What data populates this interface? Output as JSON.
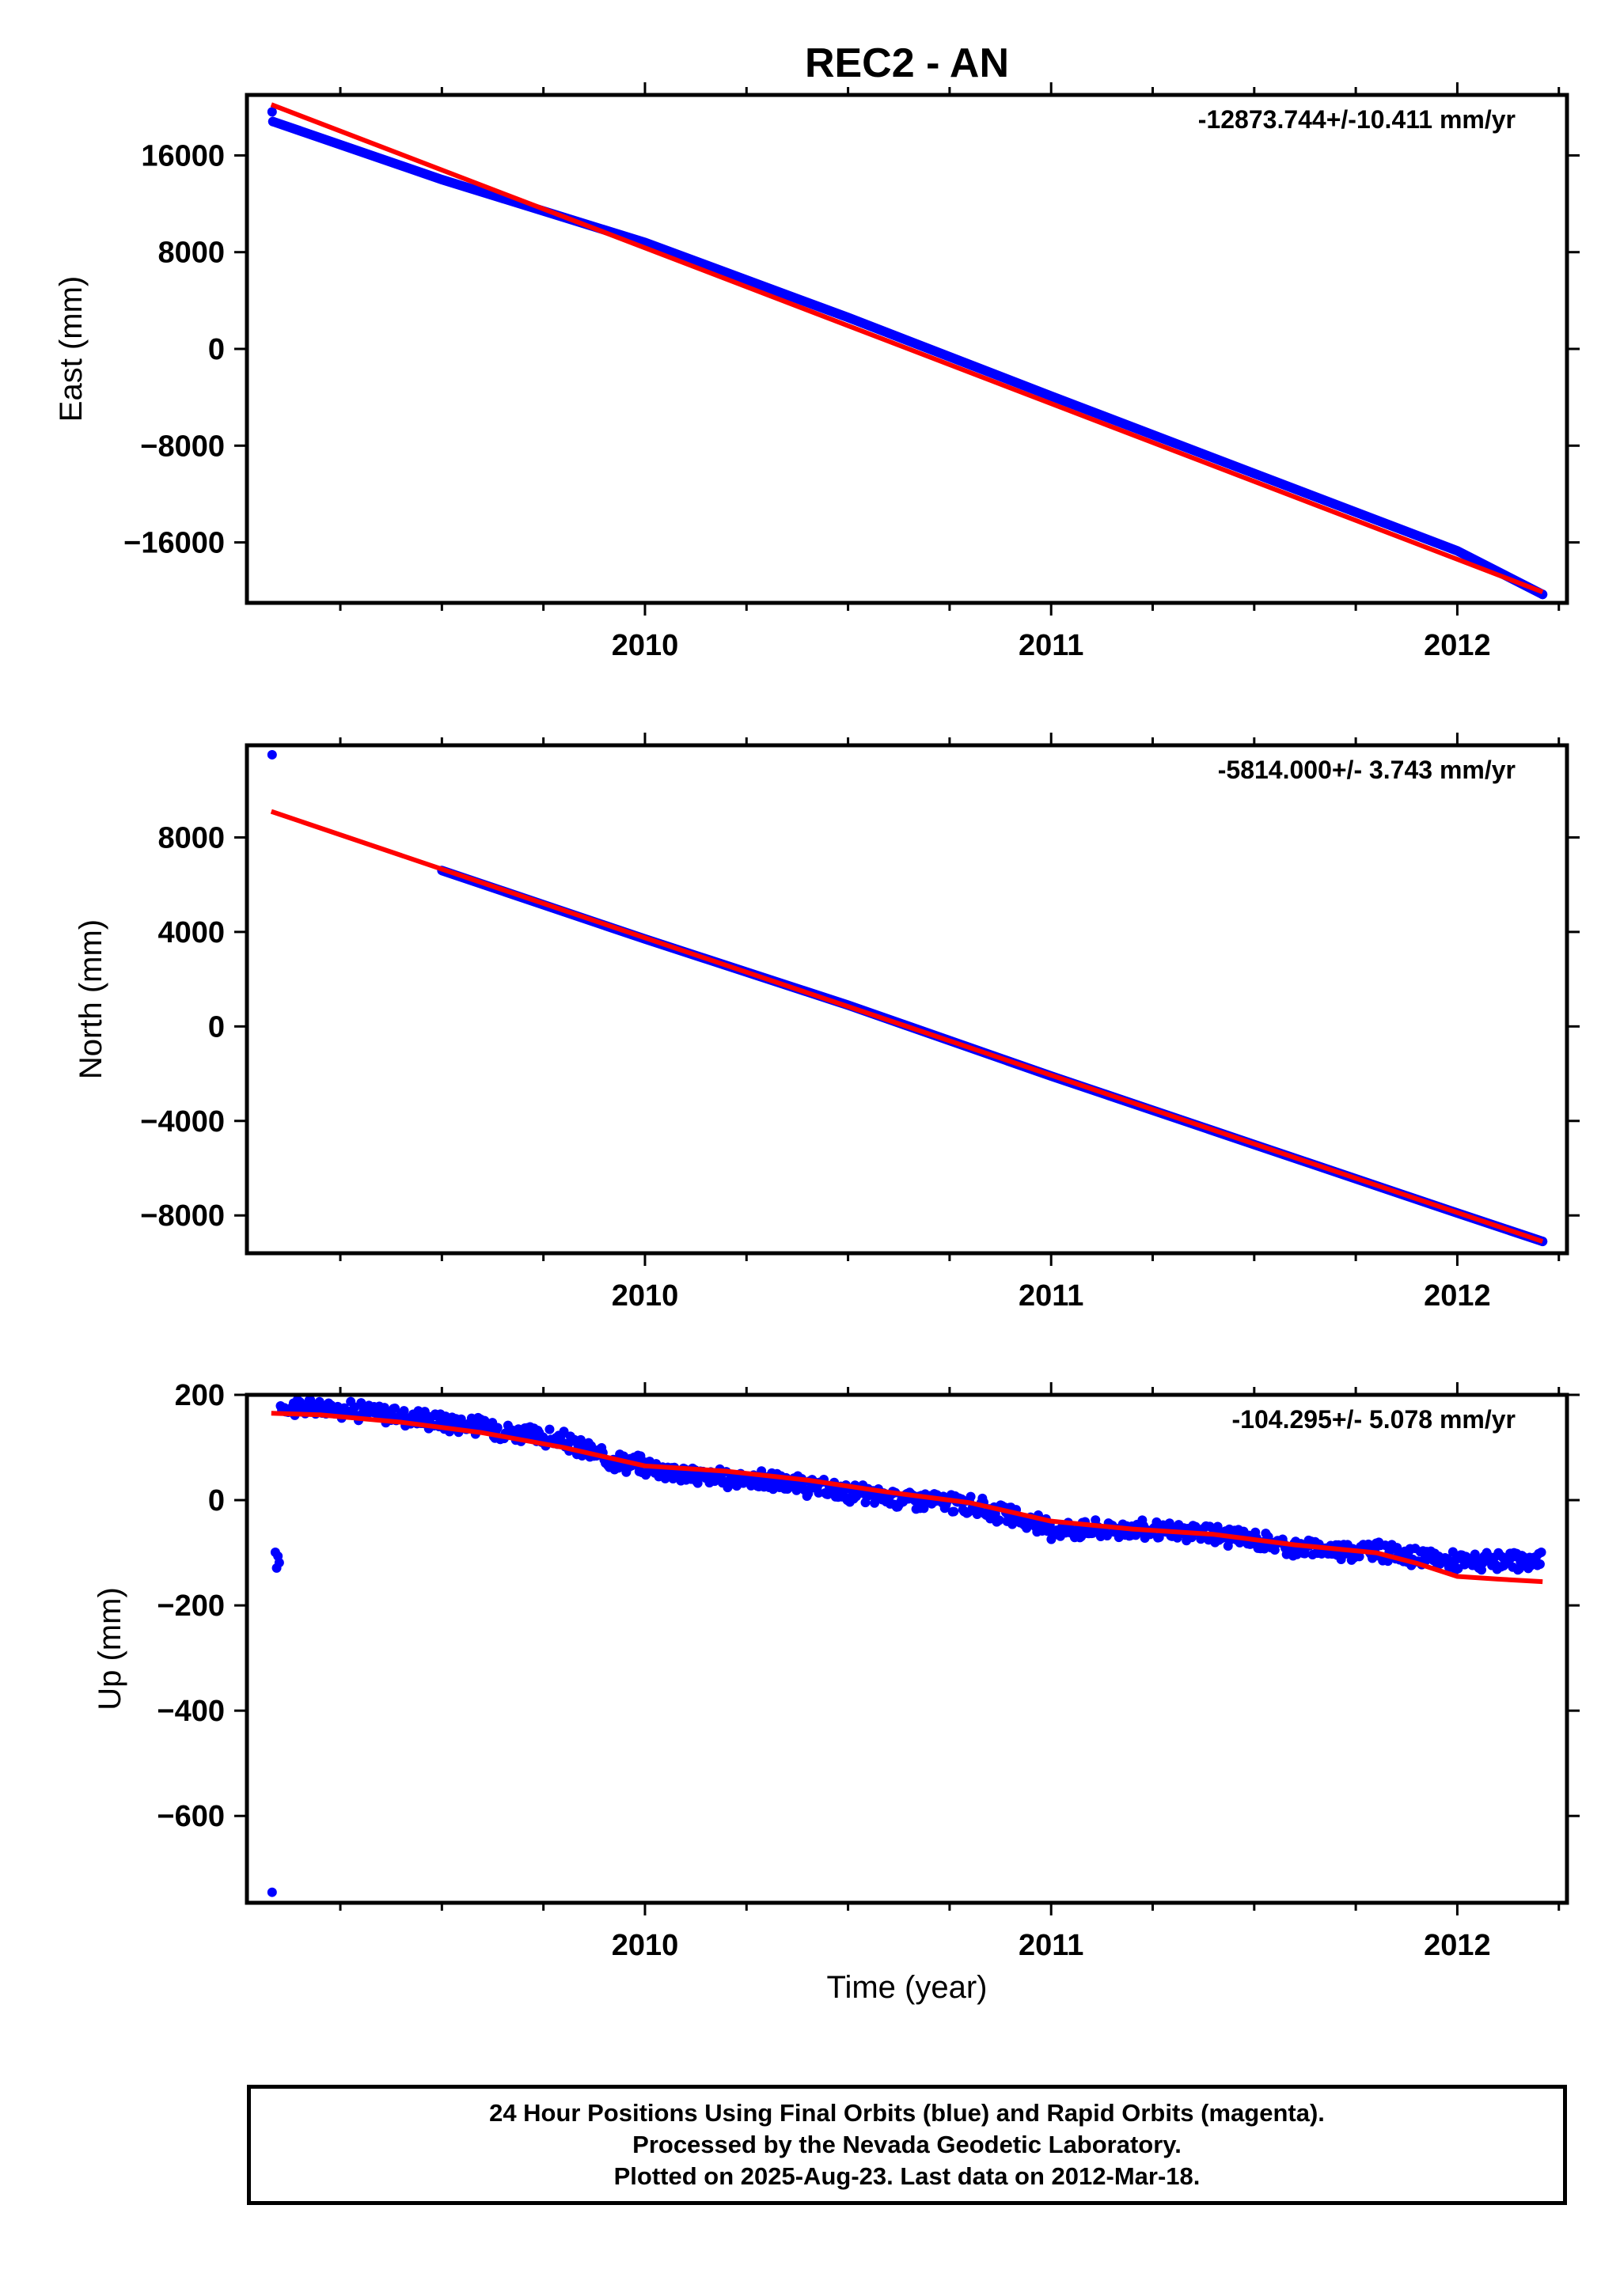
{
  "title": "REC2 - AN",
  "xlabel": "Time (year)",
  "colors": {
    "final": "#0000ff",
    "fit": "#ff0000",
    "frame": "#000000"
  },
  "chart_data": [
    {
      "type": "scatter",
      "id": "east",
      "ylabel": "East (mm)",
      "rate_label": "-12873.744+/-10.411 mm/yr",
      "xlim": [
        2009.02,
        2012.27
      ],
      "ylim": [
        -21000,
        21000
      ],
      "yticks": [
        16000,
        8000,
        0,
        -8000,
        -16000
      ],
      "ytick_labels": [
        "16000",
        "8000",
        "0",
        "−8000",
        "−16000"
      ],
      "xticks": [
        2010,
        2011,
        2012
      ],
      "xtick_labels": [
        "2010",
        "2011",
        "2012"
      ],
      "series": [
        {
          "points": [
            [
              2009.082,
              19600
            ],
            [
              2009.084,
              18800
            ],
            [
              2009.5,
              14000
            ],
            [
              2010.0,
              8800
            ],
            [
              2010.5,
              2600
            ],
            [
              2011.0,
              -3900
            ],
            [
              2011.5,
              -10300
            ],
            [
              2012.0,
              -16700
            ],
            [
              2012.21,
              -20300
            ]
          ],
          "trend": "line"
        }
      ],
      "fit": [
        [
          2009.08,
          20200
        ],
        [
          2012.21,
          -20100
        ]
      ]
    },
    {
      "type": "scatter",
      "id": "north",
      "ylabel": "North (mm)",
      "rate_label": "-5814.000+/- 3.743 mm/yr",
      "xlim": [
        2009.02,
        2012.27
      ],
      "ylim": [
        -9600,
        11900
      ],
      "yticks": [
        8000,
        4000,
        0,
        -4000,
        -8000
      ],
      "ytick_labels": [
        "8000",
        "4000",
        "0",
        "−4000",
        "−8000"
      ],
      "xticks": [
        2010,
        2011,
        2012
      ],
      "xtick_labels": [
        "2010",
        "2011",
        "2012"
      ],
      "series": [
        {
          "points": [
            [
              2009.082,
              11500
            ],
            [
              2009.5,
              6600
            ],
            [
              2010.0,
              3700
            ],
            [
              2010.5,
              900
            ],
            [
              2011.0,
              -2100
            ],
            [
              2011.5,
              -5000
            ],
            [
              2012.0,
              -7900
            ],
            [
              2012.21,
              -9100
            ]
          ],
          "trend": "line"
        }
      ],
      "fit": [
        [
          2009.08,
          9100
        ],
        [
          2012.21,
          -9100
        ]
      ]
    },
    {
      "type": "scatter",
      "id": "up",
      "ylabel": "Up (mm)",
      "rate_label": "-104.295+/- 5.078 mm/yr",
      "xlim": [
        2009.02,
        2012.27
      ],
      "ylim": [
        -765,
        200
      ],
      "yticks": [
        200,
        0,
        -200,
        -400,
        -600
      ],
      "ytick_labels": [
        "200",
        "0",
        "−200",
        "−400",
        "−600"
      ],
      "xticks": [
        2010,
        2011,
        2012
      ],
      "xtick_labels": [
        "2010",
        "2011",
        "2012"
      ],
      "series": [
        {
          "points": [
            [
              2009.082,
              -745
            ],
            [
              2009.1,
              178
            ],
            [
              2009.2,
              175
            ],
            [
              2009.3,
              170
            ],
            [
              2009.4,
              160
            ],
            [
              2009.5,
              150
            ],
            [
              2009.6,
              140
            ],
            [
              2009.7,
              125
            ],
            [
              2009.8,
              112
            ],
            [
              2009.9,
              80
            ],
            [
              2010.0,
              65
            ],
            [
              2010.1,
              50
            ],
            [
              2010.2,
              40
            ],
            [
              2010.3,
              38
            ],
            [
              2010.4,
              25
            ],
            [
              2010.5,
              15
            ],
            [
              2010.6,
              5
            ],
            [
              2010.7,
              0
            ],
            [
              2010.8,
              -10
            ],
            [
              2010.9,
              -30
            ],
            [
              2011.0,
              -55
            ],
            [
              2011.1,
              -55
            ],
            [
              2011.2,
              -55
            ],
            [
              2011.3,
              -60
            ],
            [
              2011.4,
              -65
            ],
            [
              2011.5,
              -75
            ],
            [
              2011.6,
              -90
            ],
            [
              2011.7,
              -95
            ],
            [
              2011.8,
              -95
            ],
            [
              2011.9,
              -110
            ],
            [
              2012.0,
              -115
            ],
            [
              2012.1,
              -120
            ],
            [
              2012.2,
              -115
            ]
          ]
        }
      ],
      "fit": [
        [
          2009.08,
          165
        ],
        [
          2009.2,
          162
        ],
        [
          2009.4,
          148
        ],
        [
          2009.6,
          128
        ],
        [
          2009.8,
          100
        ],
        [
          2010.0,
          65
        ],
        [
          2010.2,
          55
        ],
        [
          2010.4,
          38
        ],
        [
          2010.6,
          15
        ],
        [
          2010.8,
          -5
        ],
        [
          2011.0,
          -40
        ],
        [
          2011.2,
          -55
        ],
        [
          2011.4,
          -65
        ],
        [
          2011.6,
          -85
        ],
        [
          2011.8,
          -100
        ],
        [
          2011.9,
          -120
        ],
        [
          2012.0,
          -145
        ],
        [
          2012.1,
          -150
        ],
        [
          2012.21,
          -155
        ]
      ]
    }
  ],
  "footer": {
    "line1": "24 Hour Positions Using Final Orbits (blue) and Rapid Orbits (magenta).",
    "line2": "Processed by the Nevada Geodetic Laboratory.",
    "line3": "Plotted on 2025-Aug-23. Last data on 2012-Mar-18."
  }
}
